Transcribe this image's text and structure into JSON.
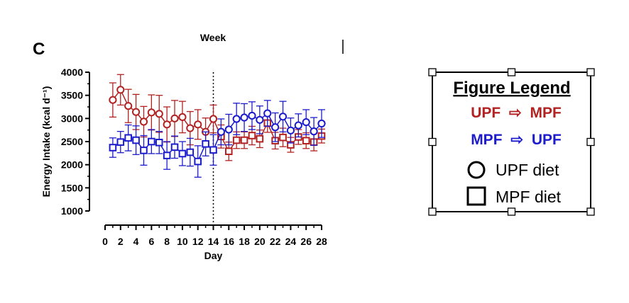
{
  "panel_label": "C",
  "top_label": "Week",
  "chart_data": {
    "type": "line",
    "title": "",
    "xlabel": "Day",
    "ylabel": "Energy Intake (kcal d⁻¹)",
    "xlim": [
      0,
      28
    ],
    "ylim": [
      1000,
      4000
    ],
    "x_ticks": [
      0,
      2,
      4,
      6,
      8,
      10,
      12,
      14,
      16,
      18,
      20,
      22,
      24,
      26,
      28
    ],
    "y_ticks": [
      1000,
      1500,
      2000,
      2500,
      3000,
      3500,
      4000
    ],
    "x_tick_labels": [
      "0",
      "2",
      "4",
      "6",
      "8",
      "10",
      "12",
      "14",
      "16",
      "18",
      "20",
      "22",
      "24",
      "26",
      "28"
    ],
    "y_tick_labels": [
      "1000",
      "1500",
      "2000",
      "2500",
      "3000",
      "3500",
      "4000"
    ],
    "grid": false,
    "vline": 14,
    "x": [
      1,
      2,
      3,
      4,
      5,
      6,
      7,
      8,
      9,
      10,
      11,
      12,
      13,
      14,
      15,
      16,
      17,
      18,
      19,
      20,
      21,
      22,
      23,
      24,
      25,
      26,
      27,
      28
    ],
    "series": [
      {
        "name": "UPF ⇨ MPF",
        "color": "#b22222",
        "values": [
          3400,
          3620,
          3270,
          3140,
          2930,
          3130,
          3100,
          2870,
          3000,
          3030,
          2790,
          2870,
          2710,
          2990,
          2610,
          2290,
          2530,
          2530,
          2630,
          2560,
          2900,
          2520,
          2590,
          2430,
          2600,
          2520,
          2490,
          2620
        ],
        "error": [
          370,
          330,
          360,
          380,
          330,
          380,
          400,
          380,
          390,
          340,
          360,
          320,
          300,
          300,
          250,
          200,
          180,
          180,
          200,
          190,
          200,
          180,
          200,
          160,
          160,
          170,
          190,
          150
        ],
        "marker": [
          "circle",
          "circle",
          "circle",
          "circle",
          "circle",
          "circle",
          "circle",
          "circle",
          "circle",
          "circle",
          "circle",
          "circle",
          "circle",
          "circle",
          "square",
          "square",
          "square",
          "square",
          "square",
          "square",
          "square",
          "square",
          "square",
          "square",
          "square",
          "square",
          "square",
          "square"
        ]
      },
      {
        "name": "MPF ⇨ UPF",
        "color": "#1c1ccc",
        "values": [
          2370,
          2490,
          2580,
          2530,
          2310,
          2500,
          2480,
          2200,
          2380,
          2240,
          2270,
          2070,
          2450,
          2320,
          2710,
          2760,
          2990,
          3020,
          3060,
          2970,
          3110,
          2810,
          3040,
          2740,
          2850,
          2920,
          2720,
          2890
        ],
        "error": [
          210,
          230,
          280,
          310,
          320,
          260,
          240,
          300,
          240,
          260,
          300,
          340,
          260,
          330,
          280,
          330,
          340,
          300,
          300,
          300,
          280,
          310,
          330,
          270,
          250,
          270,
          300,
          300
        ],
        "marker": [
          "square",
          "square",
          "square",
          "square",
          "square",
          "square",
          "square",
          "square",
          "square",
          "square",
          "square",
          "square",
          "square",
          "square",
          "circle",
          "circle",
          "circle",
          "circle",
          "circle",
          "circle",
          "circle",
          "circle",
          "circle",
          "circle",
          "circle",
          "circle",
          "circle",
          "circle"
        ]
      }
    ]
  },
  "legend": {
    "title": "Figure Legend",
    "items": [
      {
        "from": "UPF",
        "arrow": "⇨",
        "to": "MPF",
        "color": "#b22222"
      },
      {
        "from": "MPF",
        "arrow": "⇨",
        "to": "UPF",
        "color": "#1c1ccc"
      }
    ],
    "shape_items": [
      {
        "shape": "circle",
        "label": "UPF diet"
      },
      {
        "shape": "square",
        "label": "MPF diet"
      }
    ]
  }
}
